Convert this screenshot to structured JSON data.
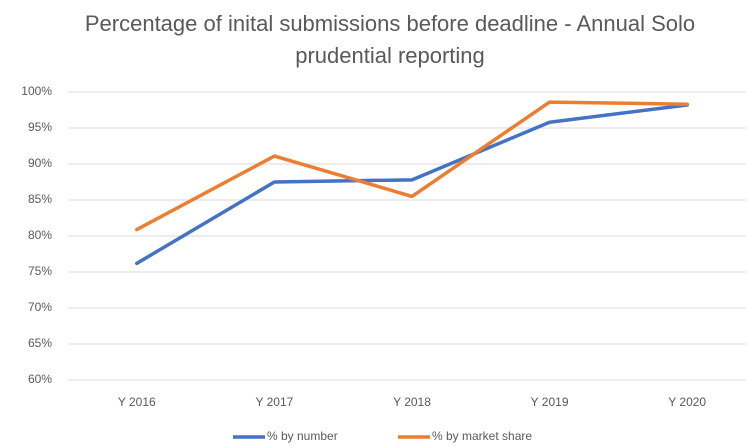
{
  "chart_data": {
    "type": "line",
    "title": "Percentage of inital submissions before deadline - Annual Solo prudential reporting",
    "categories": [
      "Y 2016",
      "Y 2017",
      "Y 2018",
      "Y 2019",
      "Y 2020"
    ],
    "series": [
      {
        "name": "% by number",
        "color": "#4472c4",
        "values": [
          76.2,
          87.5,
          87.8,
          95.8,
          98.2
        ]
      },
      {
        "name": "% by market share",
        "color": "#ed7d31",
        "values": [
          80.9,
          91.1,
          85.5,
          98.6,
          98.3
        ]
      }
    ],
    "ylim": [
      60,
      100
    ],
    "yticks": [
      {
        "value": 60,
        "label": "60%"
      },
      {
        "value": 65,
        "label": "65%"
      },
      {
        "value": 70,
        "label": "70%"
      },
      {
        "value": 75,
        "label": "75%"
      },
      {
        "value": 80,
        "label": "80%"
      },
      {
        "value": 85,
        "label": "85%"
      },
      {
        "value": 90,
        "label": "90%"
      },
      {
        "value": 95,
        "label": "95%"
      },
      {
        "value": 100,
        "label": "100%"
      }
    ],
    "grid": true,
    "legend": "bottom"
  }
}
